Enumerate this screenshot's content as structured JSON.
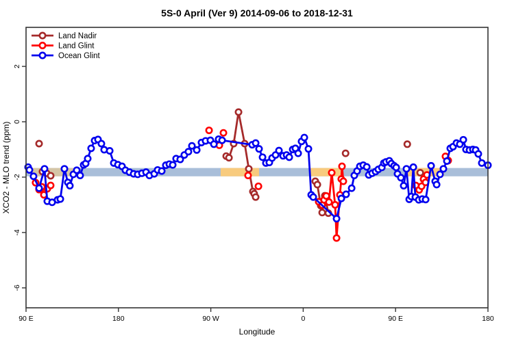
{
  "title": "5S-0 April (Ver 9)   2014-09-06 to 2018-12-31",
  "chart_data": {
    "type": "line",
    "title": "5S-0 April (Ver 9)   2014-09-06 to 2018-12-31",
    "xlabel": "Longitude",
    "ylabel": "XCO2 - MLO trend (ppm)",
    "xlim": [
      0,
      450
    ],
    "ylim": [
      -6.72,
      3.41
    ],
    "grid": false,
    "legend_position": "top-left-inside",
    "x_ticks": [
      {
        "t": 0,
        "label": "90 E"
      },
      {
        "t": 90,
        "label": "180"
      },
      {
        "t": 180,
        "label": "90 W"
      },
      {
        "t": 270,
        "label": "0"
      },
      {
        "t": 360,
        "label": "90 E"
      },
      {
        "t": 450,
        "label": "180"
      }
    ],
    "y_ticks": [
      {
        "v": 2,
        "label": "2"
      },
      {
        "v": 0,
        "label": "0"
      },
      {
        "v": -2,
        "label": "-2"
      },
      {
        "v": -4,
        "label": "-4"
      },
      {
        "v": -6,
        "label": "-6"
      }
    ],
    "bands": {
      "ocean_reference": {
        "v_top": -1.67,
        "v_bottom": -1.97,
        "color": "#a9bed9",
        "t_range": [
          0,
          450
        ]
      },
      "land_reference": {
        "color": "#f8cb7e",
        "v_top": -1.67,
        "v_bottom": -1.97,
        "segments": [
          {
            "t0": 4.7,
            "t1": 50.1,
            "opacity": 0.55
          },
          {
            "t0": 189.6,
            "t1": 227.0,
            "opacity": 1
          },
          {
            "t0": 277.1,
            "t1": 306.5,
            "opacity": 1
          },
          {
            "t0": 369.9,
            "t1": 407.3,
            "opacity": 1
          }
        ]
      }
    },
    "series": [
      {
        "name": "Land Nadir",
        "color": "#a52a2a",
        "segments": [
          [
            [
              12.7,
              -0.79
            ]
          ],
          [
            [
              16.0,
              -1.8
            ],
            [
              20.0,
              -1.86
            ],
            [
              24.0,
              -1.95
            ]
          ],
          [
            [
              195.0,
              -1.24
            ],
            [
              197.7,
              -1.3
            ],
            [
              202.3,
              -0.79
            ],
            [
              207.0,
              0.35
            ],
            [
              213.0,
              -0.79
            ],
            [
              217.0,
              -1.7
            ],
            [
              221.0,
              -2.52
            ],
            [
              222.3,
              -2.6
            ],
            [
              223.7,
              -2.72
            ]
          ],
          [
            [
              281.8,
              -2.15
            ],
            [
              283.8,
              -2.27
            ],
            [
              287.1,
              -3.03
            ],
            [
              288.5,
              -3.28
            ],
            [
              291.1,
              -2.67
            ],
            [
              294.5,
              -3.3
            ]
          ],
          [
            [
              311.3,
              -1.14
            ]
          ],
          [
            [
              371.4,
              -0.81
            ]
          ],
          [
            [
              384.0,
              -1.84
            ],
            [
              387.3,
              -2.08
            ]
          ]
        ]
      },
      {
        "name": "Land Glint",
        "color": "#ff0000",
        "segments": [
          [
            [
              9.3,
              -2.2
            ],
            [
              12.7,
              -2.45
            ],
            [
              15.4,
              -2.35
            ],
            [
              17.4,
              -2.64
            ],
            [
              20.7,
              -2.42
            ],
            [
              24.0,
              -2.3
            ]
          ],
          [
            [
              178.3,
              -0.31
            ]
          ],
          [
            [
              188.3,
              -0.85
            ]
          ],
          [
            [
              192.3,
              -0.4
            ]
          ],
          [
            [
              216.3,
              -1.94
            ]
          ],
          [
            [
              226.4,
              -2.33
            ]
          ],
          [
            [
              285.1,
              -2.89
            ],
            [
              288.5,
              -3.01
            ],
            [
              290.4,
              -2.82
            ],
            [
              292.5,
              -2.68
            ],
            [
              295.1,
              -2.9
            ],
            [
              297.8,
              -1.84
            ],
            [
              301.1,
              -3.0
            ],
            [
              302.5,
              -4.2
            ],
            [
              305.8,
              -2.64
            ],
            [
              307.1,
              -2.07
            ],
            [
              307.8,
              -1.61
            ],
            [
              309.1,
              -2.15
            ]
          ],
          [
            [
              379.7,
              -2.3
            ],
            [
              383.0,
              -2.46
            ],
            [
              385.3,
              -2.33
            ],
            [
              387.3,
              -2.07
            ],
            [
              389.2,
              -2.19
            ],
            [
              390.6,
              -1.92
            ]
          ],
          [
            [
              408.6,
              -1.25
            ],
            [
              411.3,
              -1.4
            ]
          ]
        ]
      },
      {
        "name": "Ocean Glint",
        "color": "#0000ee",
        "segments": [
          [
            [
              2.0,
              -1.64
            ],
            [
              3.3,
              -1.74
            ],
            [
              7.3,
              -1.97
            ],
            [
              12.7,
              -2.4
            ],
            [
              18.0,
              -1.7
            ],
            [
              20.7,
              -2.87
            ],
            [
              25.4,
              -2.91
            ],
            [
              30.7,
              -2.82
            ],
            [
              33.4,
              -2.79
            ],
            [
              37.4,
              -1.7
            ],
            [
              40.7,
              -2.19
            ],
            [
              42.7,
              -2.31
            ],
            [
              46.1,
              -1.9
            ],
            [
              49.4,
              -1.75
            ],
            [
              52.7,
              -1.94
            ],
            [
              56.1,
              -1.56
            ],
            [
              58.1,
              -1.51
            ],
            [
              60.1,
              -1.33
            ],
            [
              63.4,
              -0.96
            ],
            [
              66.8,
              -0.68
            ],
            [
              70.1,
              -0.64
            ],
            [
              73.4,
              -0.79
            ],
            [
              76.1,
              -1.01
            ],
            [
              81.5,
              -1.05
            ],
            [
              85.5,
              -1.49
            ],
            [
              89.5,
              -1.55
            ],
            [
              93.5,
              -1.61
            ],
            [
              96.8,
              -1.75
            ],
            [
              100.8,
              -1.82
            ],
            [
              104.8,
              -1.88
            ],
            [
              108.8,
              -1.9
            ],
            [
              112.9,
              -1.86
            ],
            [
              116.9,
              -1.82
            ],
            [
              120.2,
              -1.94
            ],
            [
              124.9,
              -1.88
            ],
            [
              128.2,
              -1.74
            ],
            [
              132.2,
              -1.78
            ],
            [
              136.2,
              -1.57
            ],
            [
              139.6,
              -1.53
            ],
            [
              142.9,
              -1.56
            ],
            [
              146.2,
              -1.33
            ],
            [
              150.2,
              -1.36
            ],
            [
              154.2,
              -1.2
            ],
            [
              158.2,
              -1.08
            ],
            [
              161.6,
              -0.87
            ],
            [
              166.3,
              -1.02
            ],
            [
              170.9,
              -0.75
            ],
            [
              174.9,
              -0.69
            ],
            [
              179.6,
              -0.67
            ],
            [
              183.0,
              -0.81
            ],
            [
              187.6,
              -0.63
            ],
            [
              191.0,
              -0.67
            ],
            [
              220.3,
              -0.83
            ],
            [
              223.7,
              -0.77
            ],
            [
              227.0,
              -0.98
            ],
            [
              230.4,
              -1.28
            ],
            [
              233.7,
              -1.49
            ],
            [
              237.0,
              -1.47
            ],
            [
              239.7,
              -1.31
            ],
            [
              243.1,
              -1.2
            ],
            [
              246.4,
              -1.04
            ],
            [
              250.4,
              -1.23
            ],
            [
              253.8,
              -1.2
            ],
            [
              256.4,
              -1.28
            ],
            [
              259.8,
              -1.0
            ],
            [
              262.4,
              -0.96
            ],
            [
              265.1,
              -1.14
            ],
            [
              268.4,
              -0.71
            ],
            [
              271.1,
              -0.57
            ],
            [
              275.1,
              -0.98
            ],
            [
              277.8,
              -2.64
            ],
            [
              279.8,
              -2.72
            ],
            [
              302.5,
              -3.5
            ],
            [
              307.2,
              -2.77
            ],
            [
              311.8,
              -2.62
            ],
            [
              317.2,
              -2.4
            ],
            [
              319.8,
              -1.94
            ],
            [
              322.5,
              -1.78
            ],
            [
              325.2,
              -1.61
            ],
            [
              328.5,
              -1.57
            ],
            [
              331.9,
              -1.63
            ],
            [
              333.9,
              -1.92
            ],
            [
              337.2,
              -1.86
            ],
            [
              340.5,
              -1.8
            ],
            [
              343.2,
              -1.72
            ],
            [
              346.6,
              -1.65
            ],
            [
              348.6,
              -1.49
            ],
            [
              350.6,
              -1.45
            ],
            [
              353.9,
              -1.41
            ],
            [
              355.9,
              -1.51
            ],
            [
              358.6,
              -1.59
            ],
            [
              360.6,
              -1.65
            ],
            [
              361.9,
              -1.88
            ],
            [
              365.2,
              -2.02
            ],
            [
              367.9,
              -2.31
            ],
            [
              370.6,
              -1.7
            ],
            [
              373.3,
              -2.8
            ],
            [
              375.3,
              -2.7
            ],
            [
              377.3,
              -1.64
            ],
            [
              379.3,
              -2.72
            ],
            [
              382.6,
              -2.82
            ],
            [
              386.0,
              -2.79
            ],
            [
              389.3,
              -2.81
            ],
            [
              394.6,
              -1.59
            ],
            [
              398.6,
              -2.15
            ],
            [
              400.0,
              -2.27
            ],
            [
              403.3,
              -1.9
            ],
            [
              406.6,
              -1.7
            ],
            [
              410.0,
              -1.42
            ],
            [
              413.3,
              -0.96
            ],
            [
              416.0,
              -0.9
            ],
            [
              419.3,
              -0.77
            ],
            [
              422.6,
              -0.81
            ],
            [
              426.0,
              -0.65
            ],
            [
              428.6,
              -1.0
            ],
            [
              432.0,
              -1.02
            ],
            [
              435.3,
              -1.0
            ],
            [
              438.0,
              -1.02
            ],
            [
              440.6,
              -1.16
            ],
            [
              444.0,
              -1.49
            ],
            [
              450.0,
              -1.57
            ]
          ]
        ]
      }
    ],
    "legend": [
      {
        "label": "Land Nadir",
        "color": "#a52a2a"
      },
      {
        "label": "Land Glint",
        "color": "#ff0000"
      },
      {
        "label": "Ocean Glint",
        "color": "#0000ee"
      }
    ]
  },
  "style_colors": {
    "axis": "#333333",
    "text": "#000000",
    "background": "#ffffff"
  }
}
